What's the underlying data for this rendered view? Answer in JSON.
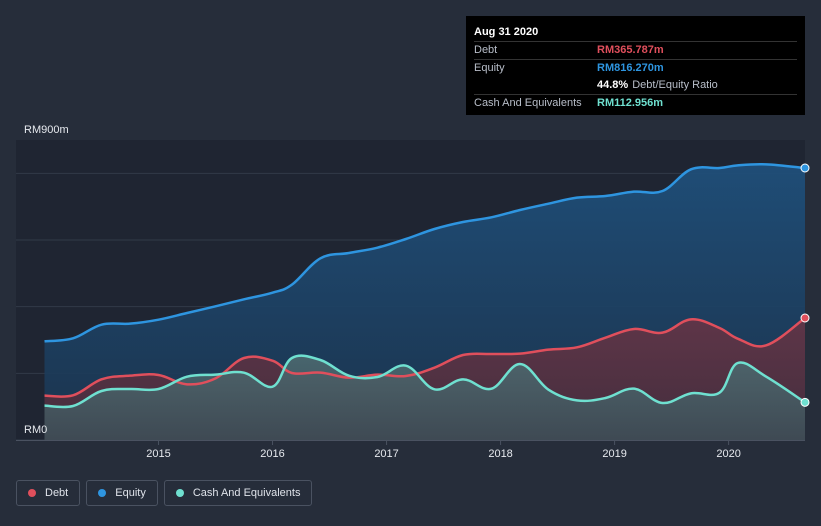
{
  "tooltip": {
    "date": "Aug 31 2020",
    "debt_label": "Debt",
    "debt_value": "RM365.787m",
    "equity_label": "Equity",
    "equity_value": "RM816.270m",
    "ratio_value": "44.8%",
    "ratio_label": "Debt/Equity Ratio",
    "cash_label": "Cash And Equivalents",
    "cash_value": "RM112.956m"
  },
  "legend": {
    "debt": "Debt",
    "equity": "Equity",
    "cash": "Cash And Equivalents"
  },
  "colors": {
    "debt": "#e04f5c",
    "equity": "#2e95e0",
    "cash": "#6fe0d0",
    "background": "#262d3a"
  },
  "chart_data": {
    "type": "area",
    "ylim": [
      0,
      900
    ],
    "y_tick_labels": [
      "RM0",
      "RM900m"
    ],
    "x_tick_labels": [
      "2015",
      "2016",
      "2017",
      "2018",
      "2019",
      "2020"
    ],
    "x_ticks": [
      2015.0,
      2016.0,
      2017.0,
      2018.0,
      2019.0,
      2020.0
    ],
    "xlim": [
      2013.75,
      2020.67
    ],
    "series": [
      {
        "name": "Equity",
        "x": [
          2014.0,
          2014.25,
          2014.5,
          2014.75,
          2015.0,
          2015.25,
          2015.5,
          2015.75,
          2016.0,
          2016.17,
          2016.42,
          2016.67,
          2016.92,
          2017.17,
          2017.42,
          2017.67,
          2017.92,
          2018.17,
          2018.42,
          2018.67,
          2018.92,
          2019.17,
          2019.42,
          2019.67,
          2019.92,
          2020.08,
          2020.33,
          2020.67
        ],
        "values": [
          296,
          305,
          346,
          349,
          361,
          381,
          401,
          422,
          442,
          466,
          545,
          561,
          577,
          603,
          633,
          654,
          668,
          690,
          709,
          727,
          732,
          745,
          747,
          812,
          816,
          824,
          827,
          816
        ]
      },
      {
        "name": "Debt",
        "x": [
          2014.0,
          2014.25,
          2014.5,
          2014.75,
          2015.0,
          2015.25,
          2015.5,
          2015.75,
          2016.0,
          2016.17,
          2016.42,
          2016.67,
          2016.92,
          2017.17,
          2017.42,
          2017.67,
          2017.92,
          2018.17,
          2018.42,
          2018.67,
          2018.92,
          2019.17,
          2019.42,
          2019.67,
          2019.92,
          2020.08,
          2020.33,
          2020.67
        ],
        "values": [
          133,
          134,
          182,
          193,
          195,
          167,
          185,
          246,
          238,
          201,
          202,
          187,
          196,
          192,
          217,
          255,
          258,
          259,
          271,
          278,
          307,
          333,
          322,
          362,
          336,
          304,
          284,
          366
        ]
      },
      {
        "name": "Cash And Equivalents",
        "x": [
          2014.0,
          2014.25,
          2014.5,
          2014.75,
          2015.0,
          2015.25,
          2015.5,
          2015.75,
          2016.0,
          2016.17,
          2016.42,
          2016.67,
          2016.92,
          2017.17,
          2017.42,
          2017.67,
          2017.92,
          2018.17,
          2018.42,
          2018.67,
          2018.92,
          2019.17,
          2019.42,
          2019.67,
          2019.92,
          2020.08,
          2020.33,
          2020.67
        ],
        "values": [
          103,
          102,
          147,
          153,
          153,
          190,
          196,
          202,
          160,
          246,
          240,
          193,
          189,
          223,
          152,
          182,
          154,
          228,
          151,
          119,
          126,
          154,
          111,
          140,
          142,
          231,
          190,
          113
        ]
      }
    ]
  }
}
